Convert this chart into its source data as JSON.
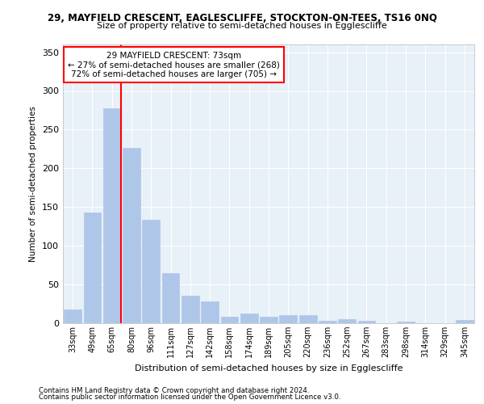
{
  "title_line1": "29, MAYFIELD CRESCENT, EAGLESCLIFFE, STOCKTON-ON-TEES, TS16 0NQ",
  "title_line2": "Size of property relative to semi-detached houses in Egglescliffe",
  "xlabel": "Distribution of semi-detached houses by size in Egglescliffe",
  "ylabel": "Number of semi-detached properties",
  "footer1": "Contains HM Land Registry data © Crown copyright and database right 2024.",
  "footer2": "Contains public sector information licensed under the Open Government Licence v3.0.",
  "annotation_title": "29 MAYFIELD CRESCENT: 73sqm",
  "annotation_line1": "← 27% of semi-detached houses are smaller (268)",
  "annotation_line2": "72% of semi-detached houses are larger (705) →",
  "property_size": 73,
  "bar_color": "#aec6e8",
  "vline_color": "red",
  "vline_x_index": 2,
  "categories": [
    "33sqm",
    "49sqm",
    "65sqm",
    "80sqm",
    "96sqm",
    "111sqm",
    "127sqm",
    "142sqm",
    "158sqm",
    "174sqm",
    "189sqm",
    "205sqm",
    "220sqm",
    "236sqm",
    "252sqm",
    "267sqm",
    "283sqm",
    "298sqm",
    "314sqm",
    "329sqm",
    "345sqm"
  ],
  "values": [
    18,
    143,
    278,
    226,
    134,
    65,
    35,
    28,
    8,
    13,
    8,
    10,
    10,
    3,
    5,
    3,
    0,
    2,
    0,
    0,
    4
  ],
  "ylim": [
    0,
    360
  ],
  "yticks": [
    0,
    50,
    100,
    150,
    200,
    250,
    300,
    350
  ],
  "plot_bg_color": "#e8f0f8",
  "grid_color": "white"
}
